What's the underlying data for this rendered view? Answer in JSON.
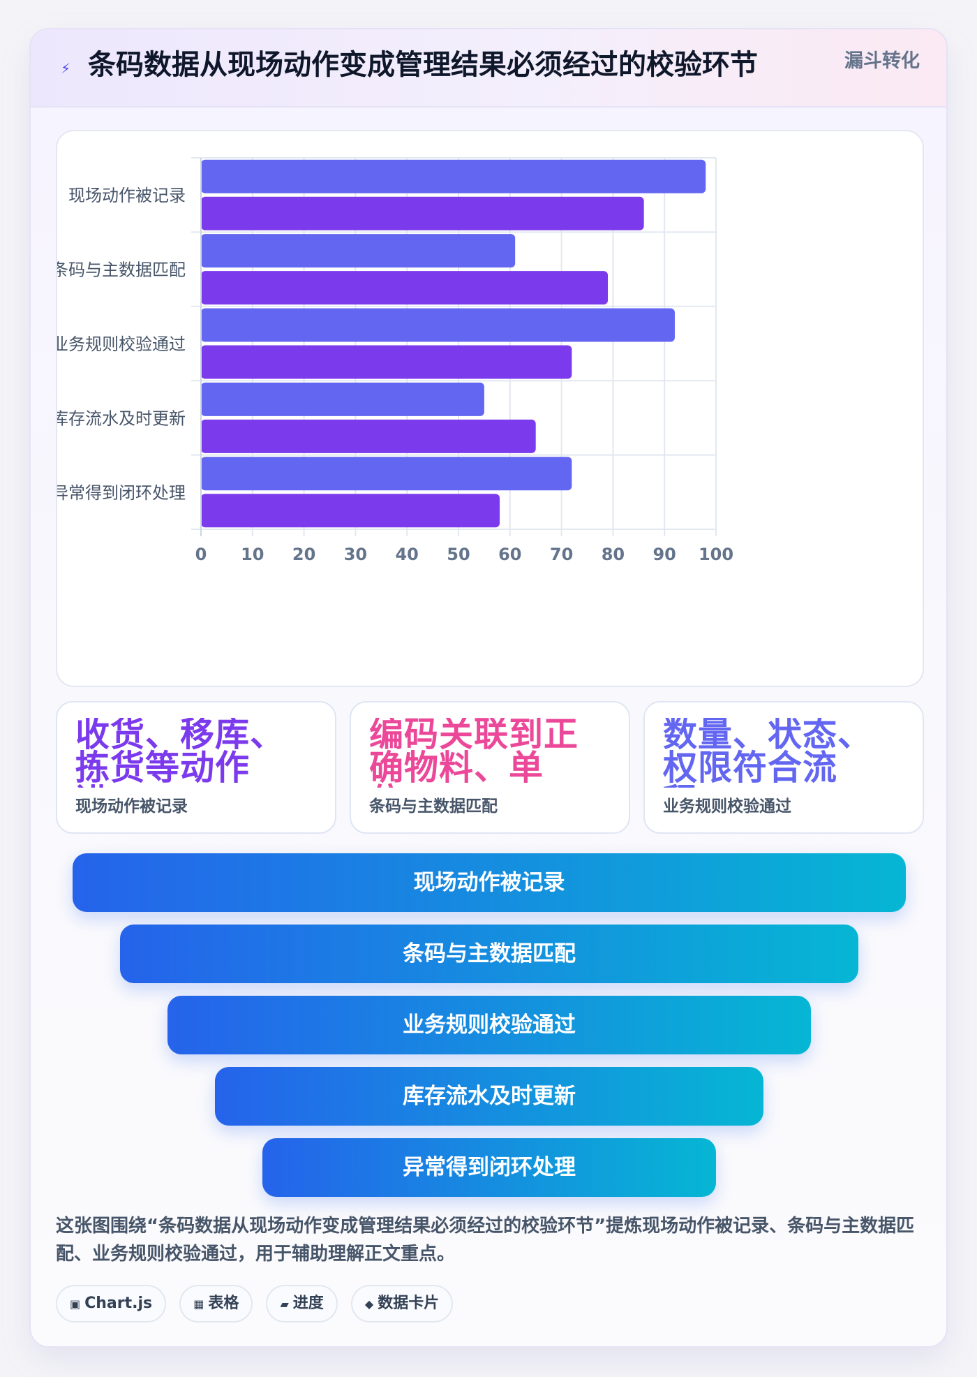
{
  "header": {
    "title": "条码数据从现场动作变成管理结果必须经过的校验环节",
    "badge": "漏斗转化",
    "icon": "lightning-icon"
  },
  "colors": {
    "series_a": "#6366f1",
    "series_b": "#7c3aed",
    "kpi_purple": "#7c3aed",
    "kpi_pink": "#ec4899",
    "kpi_indigo": "#6366f1",
    "funnel_start": "#2563eb",
    "funnel_end": "#06b6d4"
  },
  "chart_data": {
    "type": "bar",
    "orientation": "horizontal",
    "categories": [
      "现场动作被记录",
      "条码与主数据匹配",
      "业务规则校验通过",
      "库存流水及时更新",
      "异常得到闭环处理"
    ],
    "series": [
      {
        "values": [
          98,
          61,
          92,
          55,
          72
        ]
      },
      {
        "values": [
          86,
          79,
          72,
          65,
          58
        ]
      }
    ],
    "xlim": [
      0,
      100
    ],
    "xticks": [
      0,
      10,
      20,
      30,
      40,
      50,
      60,
      70,
      80,
      90,
      100
    ],
    "grid": true,
    "legend": "none"
  },
  "kpis": [
    {
      "value": "收货、移库、拣货等动作进…",
      "label": "现场动作被记录",
      "color": "#7c3aed"
    },
    {
      "value": "编码关联到正确物料、单位…",
      "label": "条码与主数据匹配",
      "color": "#ec4899"
    },
    {
      "value": "数量、状态、权限符合流程…",
      "label": "业务规则校验通过",
      "color": "#6366f1"
    }
  ],
  "funnel": [
    "现场动作被记录",
    "条码与主数据匹配",
    "业务规则校验通过",
    "库存流水及时更新",
    "异常得到闭环处理"
  ],
  "caption": "这张图围绕“条码数据从现场动作变成管理结果必须经过的校验环节”提炼现场动作被记录、条码与主数据匹配、业务规则校验通过，用于辅助理解正文重点。",
  "tags": [
    {
      "icon": "chart-icon",
      "label": "Chart.js"
    },
    {
      "icon": "table-icon",
      "label": "表格"
    },
    {
      "icon": "progress-icon",
      "label": "进度"
    },
    {
      "icon": "data-card-icon",
      "label": "数据卡片"
    }
  ]
}
